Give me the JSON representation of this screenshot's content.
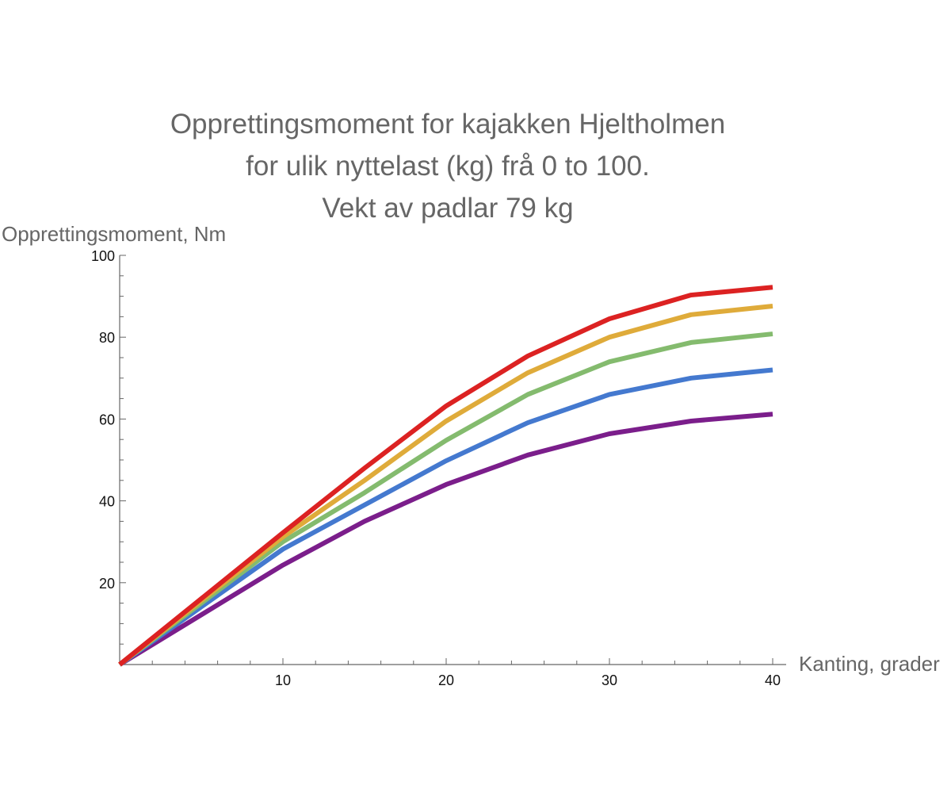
{
  "chart_data": {
    "type": "line",
    "title": [
      "Opprettingsmoment for kajakken Hjeltholmen",
      "for ulik nyttelast (kg) frå 0 to 100.",
      "Vekt av padlar 79 kg"
    ],
    "xlabel": "Kanting, grader",
    "ylabel": "Opprettingsmoment, Nm",
    "xlim": [
      0,
      40
    ],
    "ylim": [
      0,
      100
    ],
    "xticks": [
      10,
      20,
      30,
      40
    ],
    "yticks": [
      20,
      40,
      60,
      80,
      100
    ],
    "grid": false,
    "x": [
      0,
      10,
      15,
      20,
      25,
      30,
      35,
      40
    ],
    "series": [
      {
        "color": "#7B1E8B",
        "values": [
          0,
          24.3,
          35,
          44,
          51.2,
          56.4,
          59.5,
          61.2
        ]
      },
      {
        "color": "#4479CF",
        "values": [
          0,
          28.2,
          39,
          49.8,
          59.1,
          66,
          70,
          72
        ]
      },
      {
        "color": "#84BB6E",
        "values": [
          0,
          30,
          42,
          54.8,
          66,
          74,
          78.7,
          80.8
        ]
      },
      {
        "color": "#DFAB3A",
        "values": [
          0,
          31.2,
          45,
          59.5,
          71.3,
          80,
          85.5,
          87.6
        ]
      },
      {
        "color": "#DC2222",
        "values": [
          0,
          32.2,
          48,
          63.2,
          75.4,
          84.5,
          90.3,
          92.2
        ]
      }
    ]
  }
}
